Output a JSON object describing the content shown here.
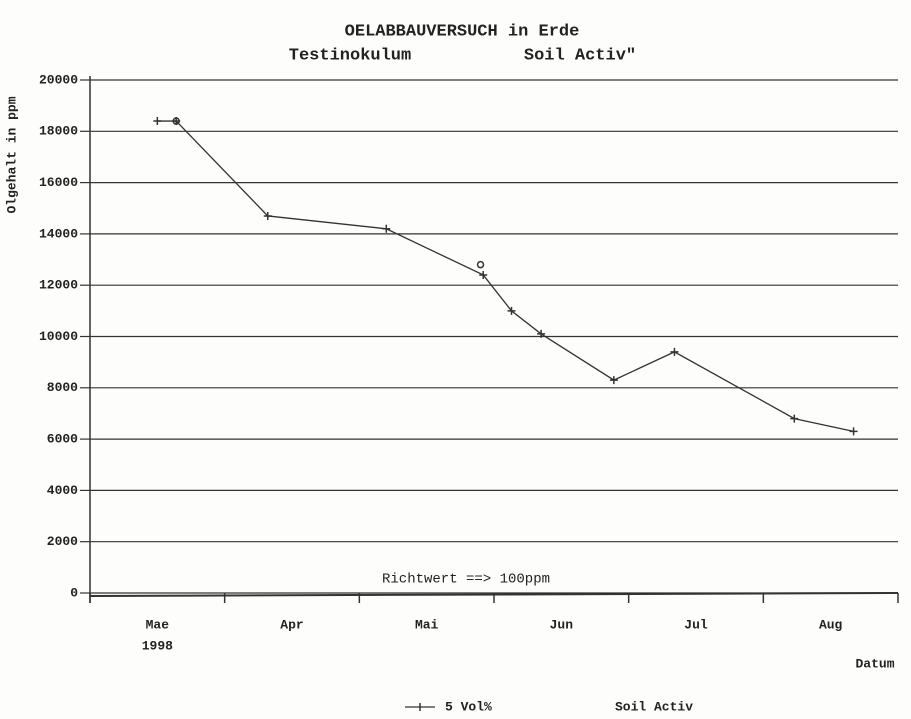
{
  "chart_data": {
    "type": "line",
    "title": "OELABBAUVERSUCH in Erde",
    "subtitle": "Testinokulum",
    "subtitle_right": "Soil Activ\"",
    "y_label": "Olgehalt in ppm",
    "x_label": "Datum",
    "annotation": "Richtwert ==> 100ppm",
    "categories": [
      "Mae",
      "Apr",
      "Mai",
      "Jun",
      "Jul",
      "Aug"
    ],
    "year_label": "1998",
    "xlim": [
      0,
      6
    ],
    "ylim": [
      0,
      20000
    ],
    "yticks": [
      0,
      2000,
      4000,
      6000,
      8000,
      10000,
      12000,
      14000,
      16000,
      18000,
      20000
    ],
    "grid": true,
    "series": [
      {
        "name": "5 Vol%",
        "color": "#333333",
        "marker": "plus",
        "x": [
          0.5,
          0.64,
          1.32,
          2.2,
          2.92,
          3.13,
          3.35,
          3.89,
          4.34,
          5.23,
          5.67
        ],
        "values": [
          18400,
          18400,
          14700,
          14200,
          12400,
          11000,
          10100,
          8300,
          9400,
          6800,
          6300
        ]
      },
      {
        "name": "Soil Activ",
        "color": "#333333",
        "marker": "circle",
        "x": [
          0.64,
          2.9
        ],
        "values": [
          18400,
          12800
        ]
      }
    ]
  }
}
